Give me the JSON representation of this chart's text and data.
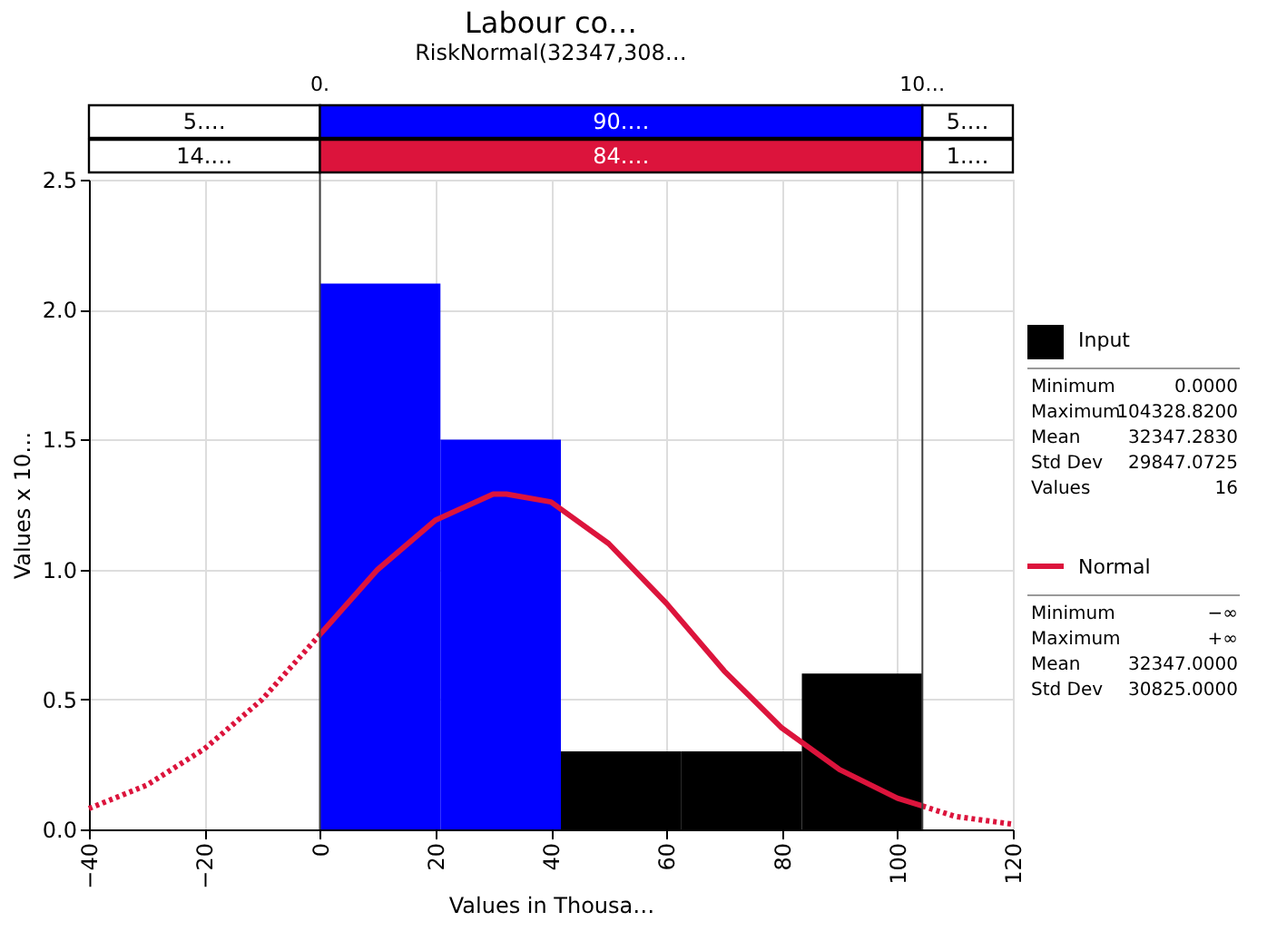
{
  "chart_data": {
    "type": "histogram",
    "title": "Labour co…",
    "subtitle": "RiskNormal(32347,308…",
    "xlabel": "Values in Thousa…",
    "ylabel": "Values x 10…",
    "xlim": [
      -40,
      120
    ],
    "xticks": [
      -40,
      -20,
      0,
      20,
      40,
      60,
      80,
      100,
      120
    ],
    "ylim": [
      0,
      2.5
    ],
    "yticks": [
      {
        "value": 0,
        "label": "0.0"
      },
      {
        "value": 0.5,
        "label": "0.5"
      },
      {
        "value": 1,
        "label": "1.0"
      },
      {
        "value": 1.5,
        "label": "1.5"
      },
      {
        "value": 2,
        "label": "2.0"
      },
      {
        "value": 2.5,
        "label": "2.5"
      }
    ],
    "grid": true,
    "legend": "right",
    "series": [
      {
        "name": "Input",
        "color": "#000000",
        "bins": [
          0,
          20.87,
          41.73,
          62.6,
          83.46,
          104.33
        ],
        "values": [
          2.1,
          1.5,
          0.3,
          0.3,
          0.6
        ],
        "colors": [
          "#0000ff",
          "#0000ff",
          "#000000",
          "#000000",
          "#000000"
        ]
      },
      {
        "name": "Normal",
        "type": "line",
        "color": "#dc143c",
        "line_style": "solid",
        "x": [
          0,
          10,
          20,
          30,
          32.3,
          40,
          50,
          60,
          70,
          80,
          90,
          100,
          104.33
        ],
        "values": [
          0.75,
          1.0,
          1.19,
          1.29,
          1.29,
          1.26,
          1.1,
          0.87,
          0.61,
          0.39,
          0.23,
          0.12,
          0.09
        ]
      },
      {
        "type": "line",
        "color": "#dc143c",
        "line_style": "dotted",
        "x": [
          -40,
          -30,
          -20,
          -10,
          0,
          50,
          104.33,
          110,
          120
        ],
        "values": [
          0.08,
          0.17,
          0.31,
          0.5,
          0.75,
          null,
          0.09,
          0.05,
          0.02
        ]
      }
    ],
    "ref_lines": [
      {
        "axis": "x",
        "value": 0,
        "label": "0.",
        "color": "#404040"
      },
      {
        "axis": "x",
        "value": 104.33,
        "label": "10…",
        "color": "#404040"
      }
    ],
    "annotations": [
      "5.…",
      "90.…",
      "5.…",
      "14.…",
      "84.…",
      "1.…",
      "Minimum",
      "0.0000",
      "Maximum",
      "104328.8200",
      "Mean",
      "32347.2830",
      "Std Dev",
      "29847.0725",
      "Values",
      "16",
      "Minimum",
      "−∞",
      "Maximum",
      "+∞",
      "Mean",
      "32347.0000",
      "Std Dev",
      "30825.0000"
    ]
  }
}
